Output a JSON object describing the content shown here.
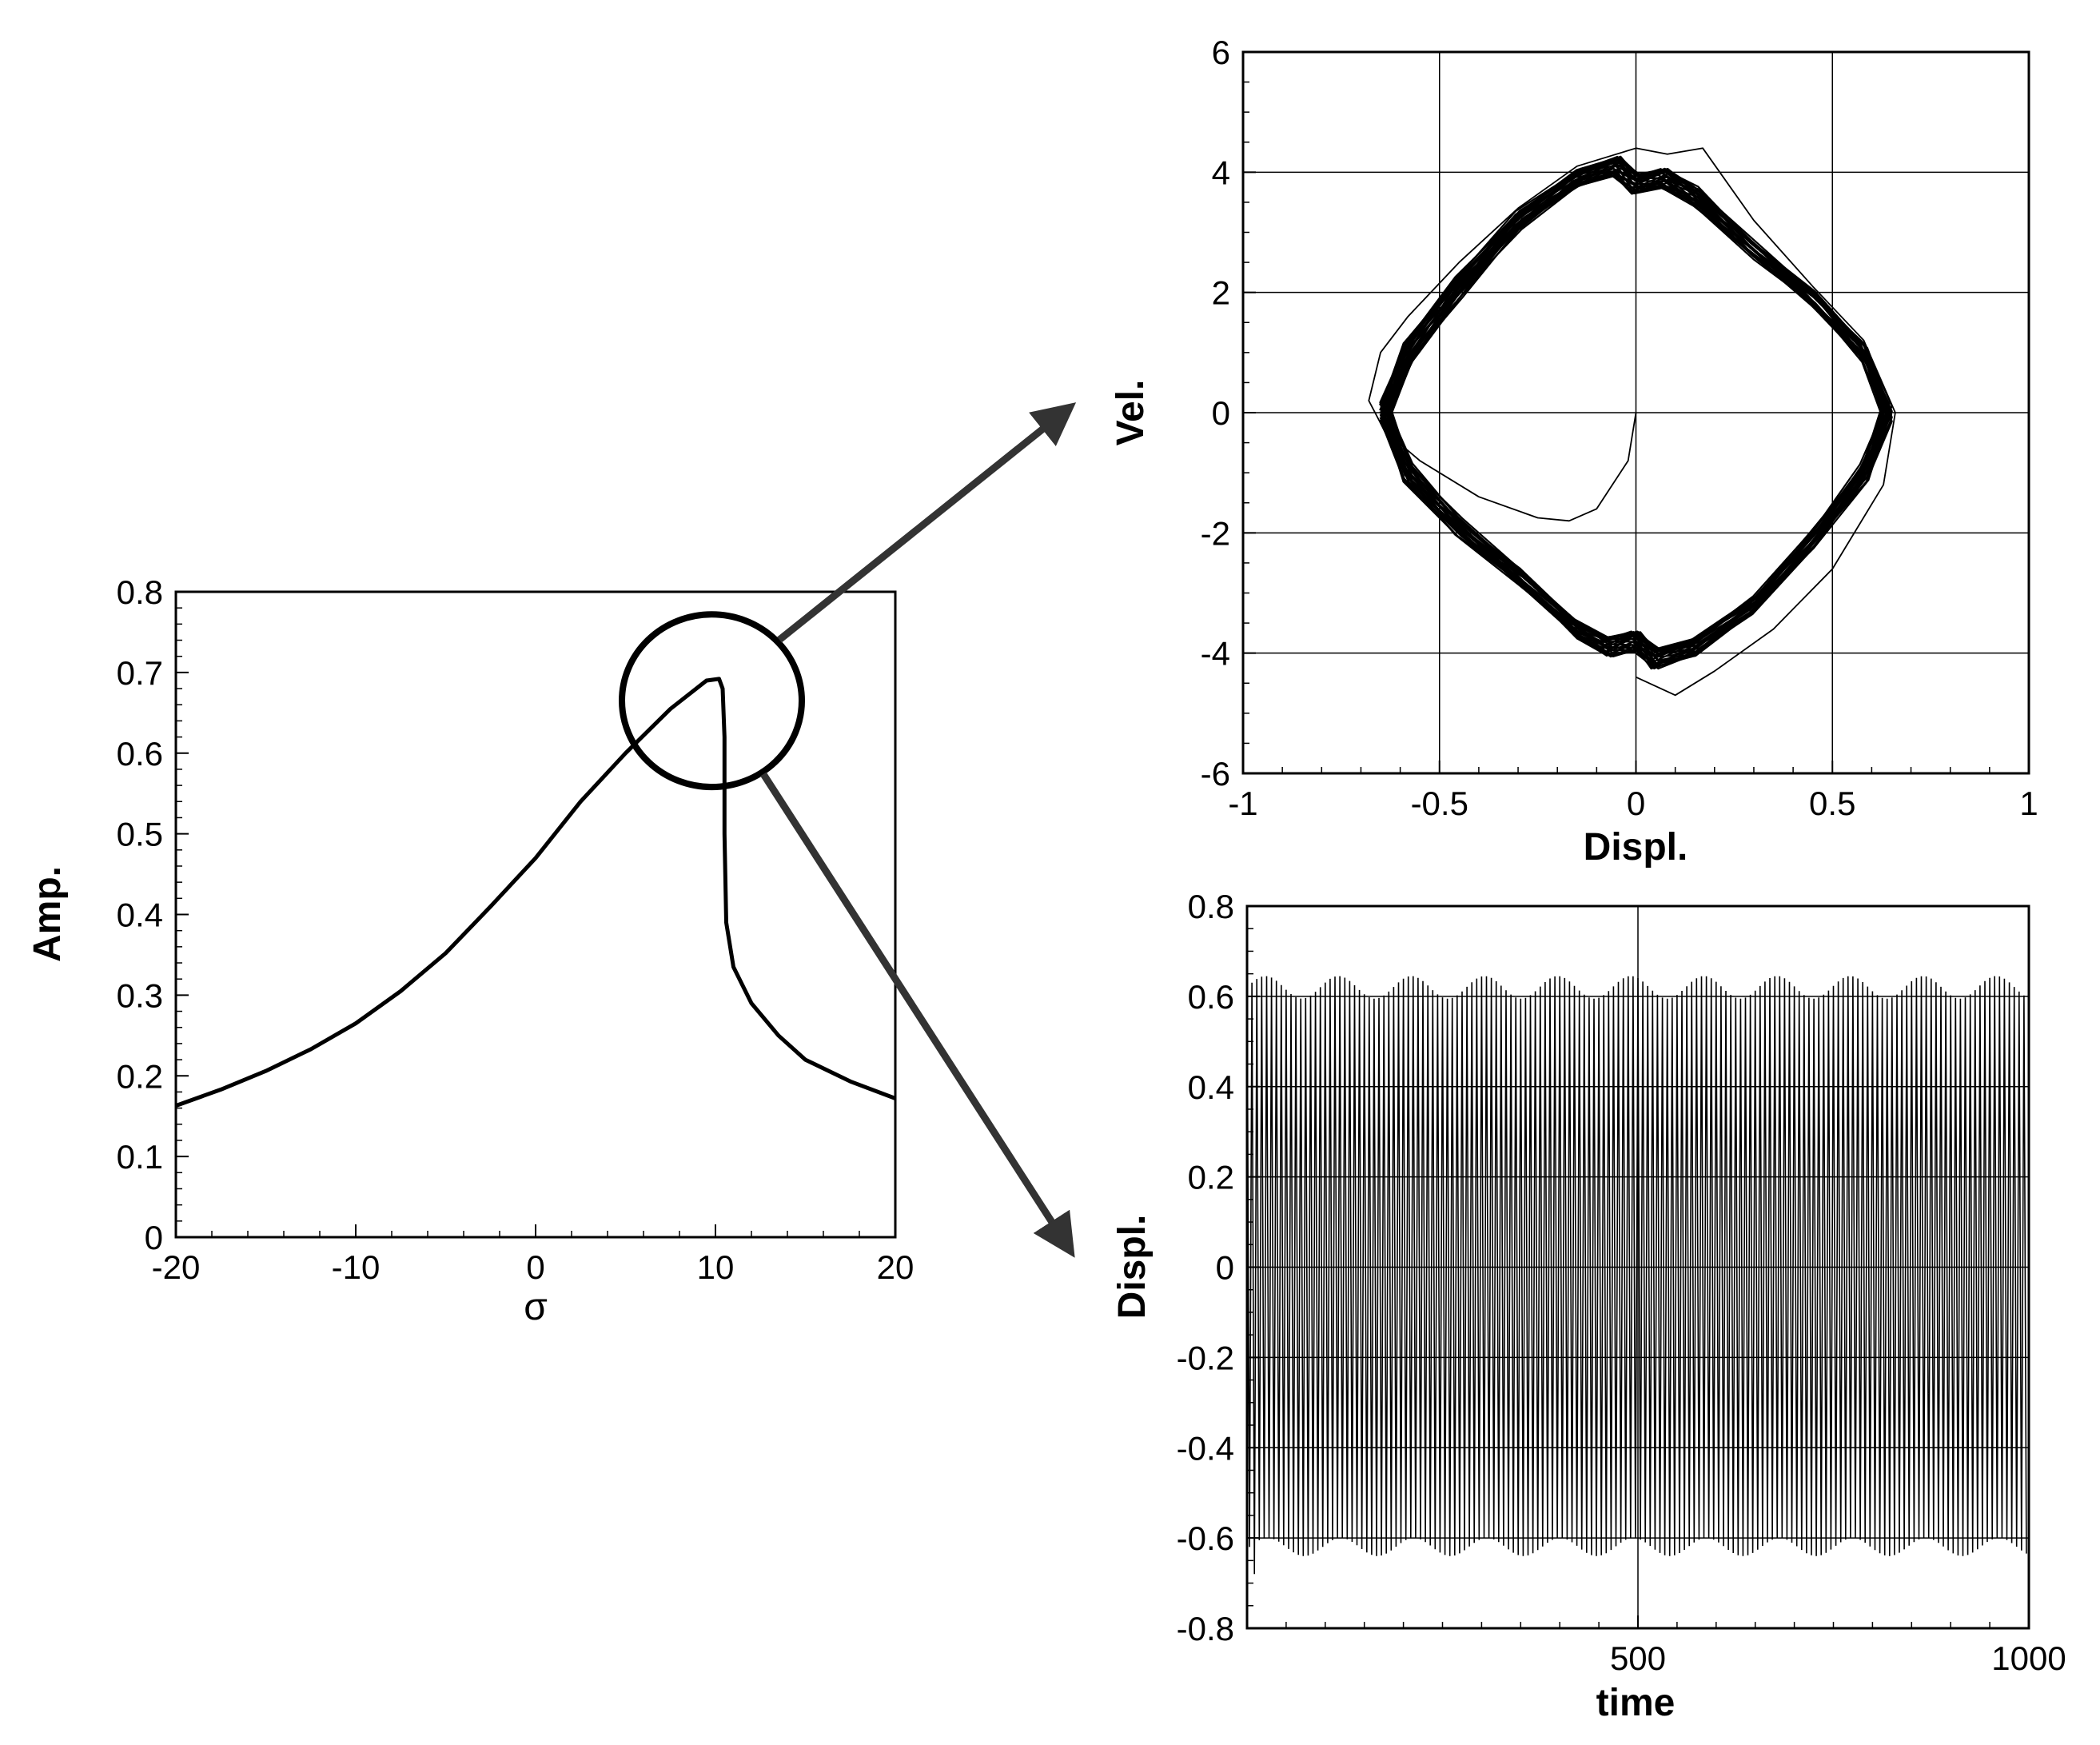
{
  "chart_data": [
    {
      "id": "frequency-response",
      "type": "line",
      "xlabel": "σ",
      "ylabel": "Amp.",
      "xlim": [
        -20,
        20
      ],
      "ylim": [
        0,
        0.8
      ],
      "xticks": [
        -20,
        -10,
        0,
        10,
        20
      ],
      "xtick_labels": [
        "-20",
        "-10",
        "0",
        "10",
        "20"
      ],
      "yticks": [
        0,
        0.1,
        0.2,
        0.3,
        0.4,
        0.5,
        0.6,
        0.7,
        0.8
      ],
      "ytick_labels": [
        "0",
        "0.1",
        "0.2",
        "0.3",
        "0.4",
        "0.5",
        "0.6",
        "0.7",
        "0.8"
      ],
      "grid": false,
      "series": [
        {
          "x": [
            -20,
            -17.5,
            -15,
            -12.5,
            -10,
            -7.5,
            -5,
            -2.5,
            0,
            2.5,
            5,
            7.5,
            9.5,
            10.2,
            10.4,
            10.5,
            10.5,
            10.6,
            11,
            12,
            13.5,
            15,
            17.5,
            20
          ],
          "y": [
            0.163,
            0.183,
            0.206,
            0.233,
            0.265,
            0.305,
            0.352,
            0.41,
            0.47,
            0.54,
            0.6,
            0.655,
            0.69,
            0.692,
            0.68,
            0.62,
            0.5,
            0.39,
            0.335,
            0.29,
            0.25,
            0.22,
            0.193,
            0.172
          ]
        }
      ],
      "annotations": [
        {
          "type": "circle",
          "center": [
            9.8,
            0.665
          ],
          "radius_x": 5,
          "radius_y": 0.107
        }
      ]
    },
    {
      "id": "phase-portrait",
      "type": "line",
      "xlabel": "Displ.",
      "ylabel": "Vel.",
      "xlim": [
        -1,
        1
      ],
      "ylim": [
        -6,
        6
      ],
      "xticks": [
        -1,
        -0.5,
        0,
        0.5,
        1
      ],
      "xtick_labels": [
        "-1",
        "-0.5",
        "0",
        "0.5",
        "1"
      ],
      "yticks": [
        -6,
        -4,
        -2,
        0,
        2,
        4,
        6
      ],
      "ytick_labels": [
        "-6",
        "-4",
        "-2",
        "0",
        "2",
        "4",
        "6"
      ],
      "grid": true,
      "series": [
        {
          "orbit": "limit-cycle",
          "x": [
            -0.64,
            -0.58,
            -0.45,
            -0.3,
            -0.15,
            -0.05,
            0,
            0.07,
            0.15,
            0.3,
            0.45,
            0.58,
            0.64,
            0.58,
            0.45,
            0.3,
            0.15,
            0.05,
            0,
            -0.07,
            -0.15,
            -0.3,
            -0.45,
            -0.58,
            -0.64
          ],
          "y": [
            0,
            1.0,
            2.1,
            3.2,
            3.9,
            4.1,
            3.8,
            3.9,
            3.6,
            2.7,
            1.9,
            1.0,
            0,
            -1.0,
            -2.1,
            -3.2,
            -3.9,
            -4.1,
            -3.8,
            -3.9,
            -3.6,
            -2.7,
            -1.9,
            -1.0,
            0
          ]
        },
        {
          "orbit": "transient",
          "x": [
            0,
            -0.02,
            -0.1,
            -0.17,
            -0.25,
            -0.4,
            -0.55,
            -0.64,
            -0.68,
            -0.65,
            -0.58,
            -0.45,
            -0.3,
            -0.15,
            -0.05,
            0,
            0.08,
            0.17,
            0.3,
            0.45,
            0.58,
            0.66,
            0.63,
            0.5,
            0.35,
            0.2,
            0.1,
            0
          ],
          "y": [
            0,
            -0.8,
            -1.6,
            -1.8,
            -1.75,
            -1.4,
            -0.8,
            -0.3,
            0.2,
            1.0,
            1.6,
            2.5,
            3.4,
            4.1,
            4.3,
            4.4,
            4.3,
            4.4,
            3.2,
            2.1,
            1.2,
            0,
            -1.2,
            -2.6,
            -3.6,
            -4.3,
            -4.7,
            -4.4
          ]
        }
      ]
    },
    {
      "id": "time-history",
      "type": "line",
      "xlabel": "time",
      "ylabel": "Displ.",
      "xlim": [
        0,
        1000
      ],
      "ylim": [
        -0.8,
        0.8
      ],
      "xticks": [
        500,
        1000
      ],
      "xtick_labels": [
        "500",
        "1000"
      ],
      "yticks": [
        -0.8,
        -0.6,
        -0.4,
        -0.2,
        0,
        0.2,
        0.4,
        0.6,
        0.8
      ],
      "ytick_labels": [
        "-0.8",
        "-0.6",
        "-0.4",
        "-0.2",
        "0",
        "0.2",
        "0.4",
        "0.6",
        "0.8"
      ],
      "grid": true,
      "series": [
        {
          "x_range": [
            0,
            1000
          ],
          "cycles": 160,
          "amplitude": 0.62,
          "envelope_ripple": 0.025,
          "initial_peak": 0.67
        }
      ]
    }
  ]
}
